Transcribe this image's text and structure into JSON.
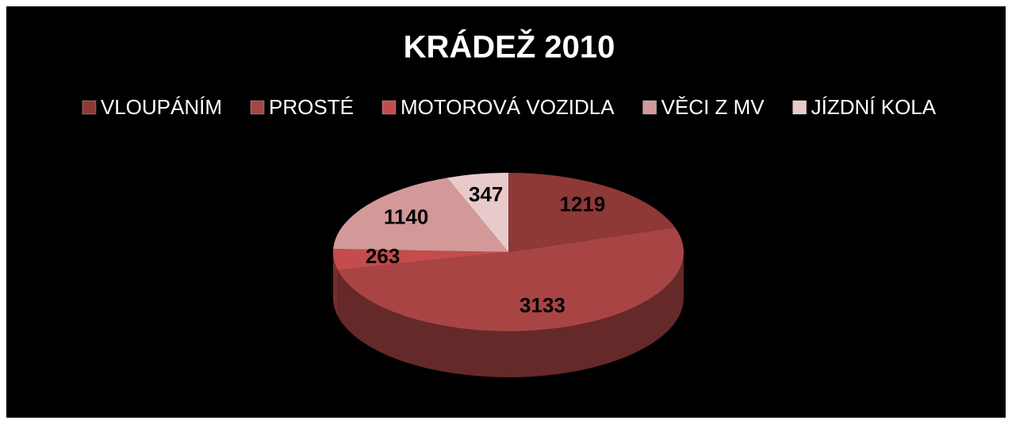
{
  "chart_data": {
    "type": "pie",
    "title": "KRÁDEŽ 2010",
    "categories": [
      "VLOUPÁNÍM",
      "PROSTÉ",
      "MOTOROVÁ VOZIDLA",
      "VĚCI Z MV",
      "JÍZDNÍ KOLA"
    ],
    "values": [
      1219,
      3133,
      263,
      1140,
      347
    ],
    "colors": [
      "#8e3838",
      "#a84444",
      "#c44c4c",
      "#d39999",
      "#e9caca"
    ],
    "legend": "top"
  }
}
